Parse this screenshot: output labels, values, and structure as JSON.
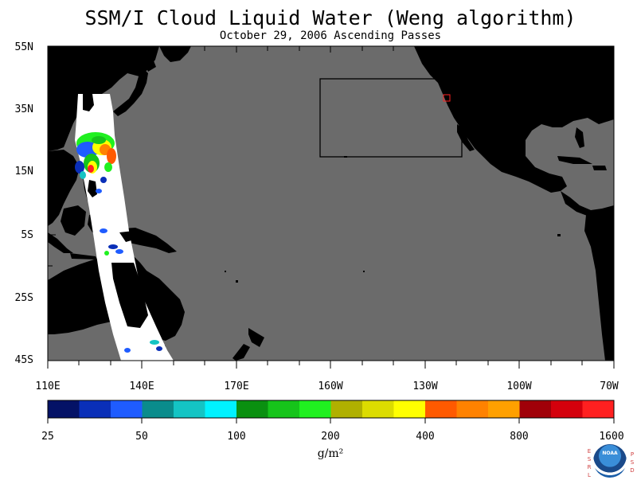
{
  "title": "SSM/I Cloud Liquid Water (Weng algorithm)",
  "subtitle": "October 29, 2006  Ascending Passes",
  "map": {
    "lat_labels": [
      "55N",
      "35N",
      "15N",
      "5S",
      "25S",
      "45S"
    ],
    "lon_labels": [
      "110E",
      "140E",
      "170E",
      "160W",
      "130W",
      "100W",
      "70W"
    ],
    "colors": {
      "ocean": "#6b6b6b",
      "land": "#000000",
      "swath": "#ffffff",
      "box_outline": "#000000",
      "marker": "#ff2020"
    }
  },
  "colorbar": {
    "labels": [
      "25",
      "50",
      "100",
      "200",
      "400",
      "800",
      "1600"
    ],
    "units": "g/m²",
    "colors": [
      "#041266",
      "#0a2fb8",
      "#1f5cff",
      "#0a8c8c",
      "#14c4c4",
      "#00f2ff",
      "#0a9010",
      "#16c41a",
      "#20f020",
      "#b0b000",
      "#dcdc00",
      "#ffff00",
      "#ff5a00",
      "#ff8200",
      "#ffa000",
      "#a00008",
      "#d4000c",
      "#ff2020"
    ]
  },
  "logo": {
    "left_letters": [
      "E",
      "S",
      "R",
      "L"
    ],
    "right_letters": [
      "P",
      "S",
      "D"
    ],
    "name": "NOAA"
  }
}
